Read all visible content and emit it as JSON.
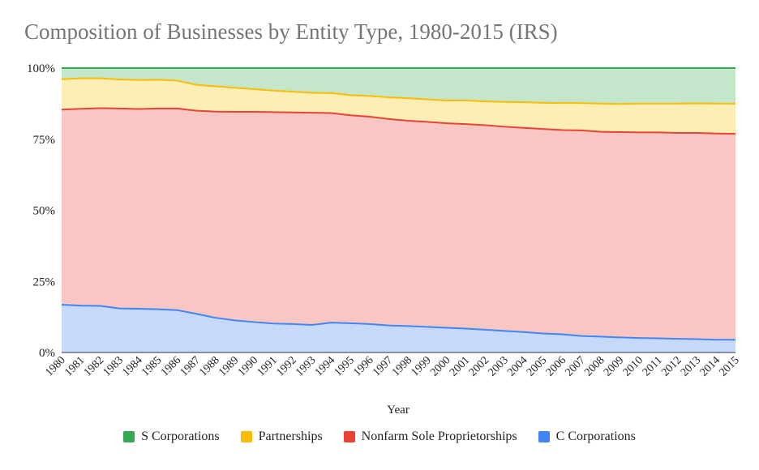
{
  "chart_data": {
    "type": "area",
    "stacked": "percent",
    "title": "Composition of Businesses by Entity Type, 1980-2015 (IRS)",
    "xlabel": "Year",
    "ylabel": "",
    "ylim": [
      0,
      100
    ],
    "y_ticks": [
      "0%",
      "25%",
      "50%",
      "75%",
      "100%"
    ],
    "y_tick_values": [
      0,
      25,
      50,
      75,
      100
    ],
    "grid": true,
    "legend_position": "bottom",
    "x": [
      "1980",
      "1981",
      "1982",
      "1983",
      "1984",
      "1985",
      "1986",
      "1987",
      "1988",
      "1989",
      "1990",
      "1991",
      "1992",
      "1993",
      "1994",
      "1995",
      "1996",
      "1997",
      "1998",
      "1999",
      "2000",
      "2001",
      "2002",
      "2003",
      "2004",
      "2005",
      "2006",
      "2007",
      "2008",
      "2009",
      "2010",
      "2011",
      "2012",
      "2013",
      "2014",
      "2015"
    ],
    "series": [
      {
        "name": "C Corporations",
        "color": "#4285f4",
        "fill": "#c6d9fb",
        "values": [
          16.8,
          16.5,
          16.4,
          15.5,
          15.4,
          15.2,
          14.9,
          13.6,
          12.2,
          11.3,
          10.7,
          10.2,
          10.0,
          9.7,
          10.5,
          10.3,
          10.0,
          9.5,
          9.3,
          9.0,
          8.7,
          8.4,
          8.0,
          7.6,
          7.2,
          6.7,
          6.4,
          5.8,
          5.6,
          5.3,
          5.1,
          5.0,
          4.8,
          4.7,
          4.5,
          4.5
        ]
      },
      {
        "name": "Nonfarm Sole Proprietorships",
        "color": "#ea4335",
        "fill": "#f8c6c3",
        "values": [
          68.6,
          69.2,
          69.5,
          70.3,
          70.2,
          70.6,
          70.9,
          71.4,
          72.5,
          73.3,
          73.9,
          74.3,
          74.4,
          74.6,
          73.7,
          73.1,
          72.9,
          72.6,
          72.2,
          72.1,
          71.9,
          71.9,
          71.9,
          71.8,
          71.8,
          71.9,
          71.8,
          72.3,
          72.0,
          72.2,
          72.3,
          72.4,
          72.4,
          72.5,
          72.5,
          72.4
        ]
      },
      {
        "name": "Partnerships",
        "color": "#fbbc04",
        "fill": "#fdeeb6",
        "values": [
          10.7,
          10.7,
          10.5,
          10.2,
          10.2,
          10.1,
          9.8,
          9.1,
          8.9,
          8.5,
          8.0,
          7.6,
          7.3,
          7.0,
          7.0,
          7.1,
          7.3,
          7.6,
          7.9,
          7.9,
          8.0,
          8.3,
          8.4,
          8.7,
          9.0,
          9.2,
          9.5,
          9.6,
          9.9,
          9.9,
          10.1,
          10.1,
          10.3,
          10.4,
          10.5,
          10.6
        ]
      },
      {
        "name": "S Corporations",
        "color": "#34a853",
        "fill": "#c4e6ca",
        "values": [
          3.9,
          3.6,
          3.6,
          4.0,
          4.2,
          4.1,
          4.4,
          5.9,
          6.4,
          6.9,
          7.4,
          7.9,
          8.3,
          8.7,
          8.8,
          9.5,
          9.8,
          10.3,
          10.6,
          11.0,
          11.4,
          11.4,
          11.7,
          11.9,
          12.0,
          12.2,
          12.3,
          12.3,
          12.5,
          12.6,
          12.5,
          12.5,
          12.5,
          12.4,
          12.5,
          12.5
        ]
      }
    ]
  }
}
